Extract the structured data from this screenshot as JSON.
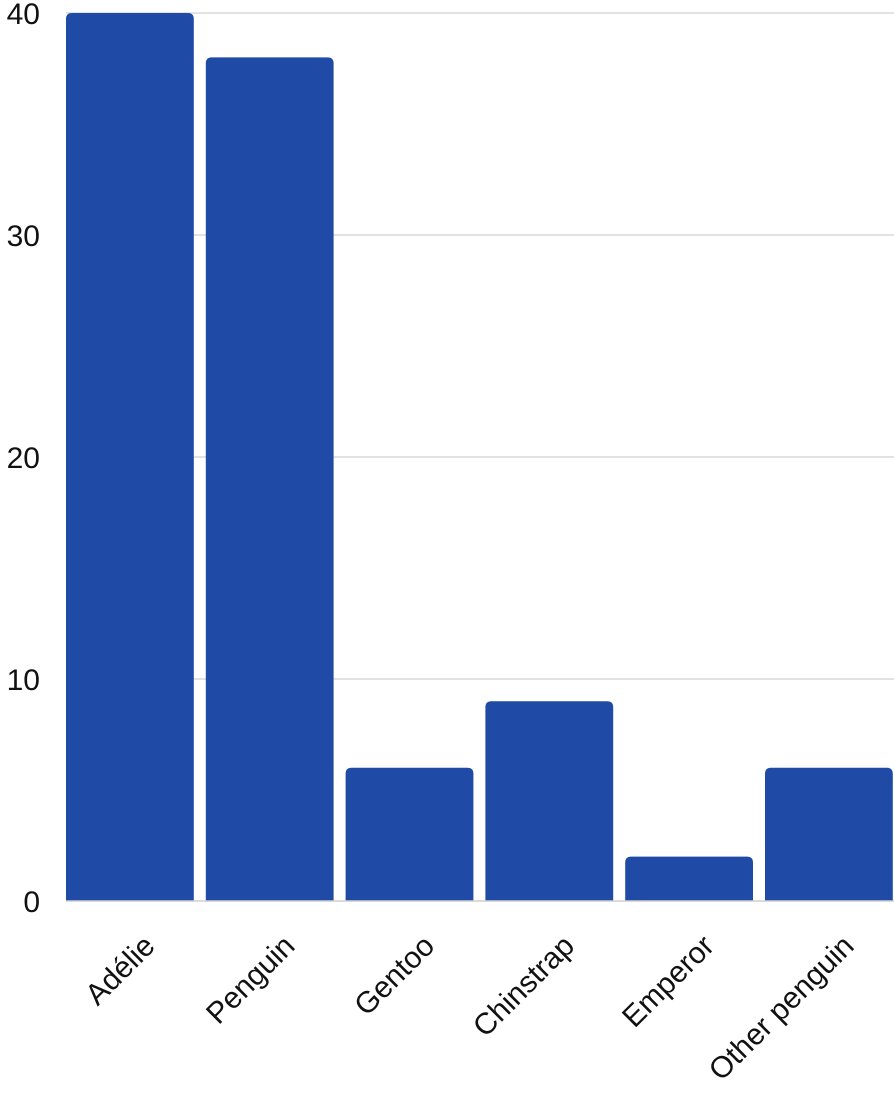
{
  "chart_data": {
    "type": "bar",
    "categories": [
      "Adélie",
      "Penguin",
      "Gentoo",
      "Chinstrap",
      "Emperor",
      "Other penguin"
    ],
    "values": [
      40,
      38,
      6,
      9,
      2,
      6
    ],
    "title": "",
    "xlabel": "",
    "ylabel": "",
    "ylim": [
      0,
      40
    ],
    "yticks": [
      0,
      10,
      20,
      30,
      40
    ],
    "grid": true,
    "bar_color": "#1f4aa5"
  }
}
